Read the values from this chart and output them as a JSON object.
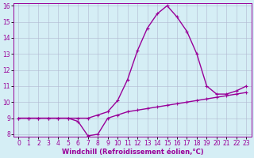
{
  "xlabel": "Windchill (Refroidissement éolien,°C)",
  "x": [
    0,
    1,
    2,
    3,
    4,
    5,
    6,
    7,
    8,
    9,
    10,
    11,
    12,
    13,
    14,
    15,
    16,
    17,
    18,
    19,
    20,
    21,
    22,
    23
  ],
  "line1": [
    9.0,
    9.0,
    9.0,
    9.0,
    9.0,
    9.0,
    8.8,
    7.9,
    8.0,
    9.0,
    9.2,
    9.4,
    9.5,
    9.6,
    9.7,
    9.8,
    9.9,
    10.0,
    10.1,
    10.2,
    10.3,
    10.4,
    10.5,
    10.6
  ],
  "line2": [
    9.0,
    9.0,
    9.0,
    9.0,
    9.0,
    9.0,
    9.0,
    9.0,
    9.2,
    9.4,
    10.1,
    11.4,
    13.2,
    14.6,
    15.5,
    16.0,
    15.3,
    14.4,
    13.0,
    11.0,
    10.5,
    10.5,
    10.7,
    11.0
  ],
  "line_color": "#990099",
  "bg_color": "#d5eef5",
  "grid_color": "#b0b8d0",
  "ylim_min": 8,
  "ylim_max": 16,
  "xlim_min": -0.5,
  "xlim_max": 23.5,
  "yticks": [
    8,
    9,
    10,
    11,
    12,
    13,
    14,
    15,
    16
  ],
  "xticks": [
    0,
    1,
    2,
    3,
    4,
    5,
    6,
    7,
    8,
    9,
    10,
    11,
    12,
    13,
    14,
    15,
    16,
    17,
    18,
    19,
    20,
    21,
    22,
    23
  ],
  "marker": "+",
  "linewidth": 1.0,
  "markersize": 3,
  "fontsize_label": 6,
  "fontsize_tick": 5.5
}
